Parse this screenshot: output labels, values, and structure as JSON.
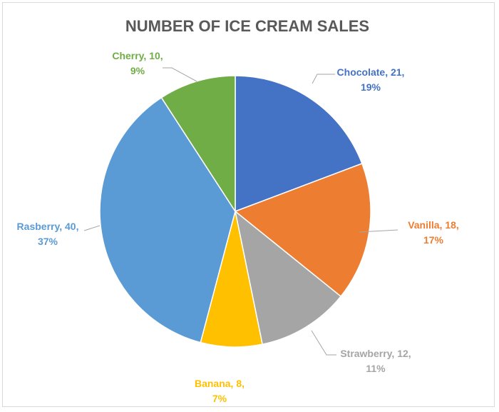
{
  "chart_data": {
    "type": "pie",
    "title": "NUMBER OF ICE CREAM SALES",
    "categories": [
      "Chocolate",
      "Vanilla",
      "Strawberry",
      "Banana",
      "Rasberry",
      "Cherry"
    ],
    "values": [
      21,
      18,
      12,
      8,
      40,
      10
    ],
    "percent_labels": [
      "19%",
      "17%",
      "11%",
      "7%",
      "37%",
      "9%"
    ],
    "colors": [
      "#4472c4",
      "#ed7d31",
      "#a5a5a5",
      "#ffc000",
      "#5b9bd5",
      "#70ad47"
    ],
    "legend": "none"
  }
}
